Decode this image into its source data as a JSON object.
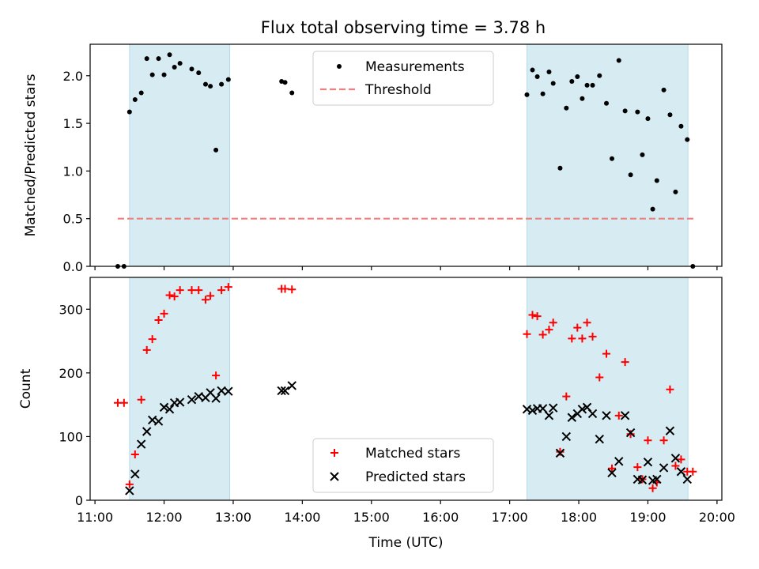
{
  "title": "Flux total observing time = 3.78 h",
  "colors": {
    "shade": "#add8e6",
    "measure": "#000000",
    "threshold": "#f08080",
    "matched": "#ff0000",
    "predicted": "#000000"
  },
  "chart_data": [
    {
      "type": "scatter",
      "name": "ratio",
      "title": "Flux total observing time = 3.78 h",
      "xlabel": "",
      "ylabel": "Matched/Predicted stars",
      "xlim": [
        10.93,
        20.07
      ],
      "ylim": [
        0.0,
        2.33
      ],
      "yticks": [
        0.0,
        0.5,
        1.0,
        1.5,
        2.0
      ],
      "ytick_labels": [
        "0.0",
        "0.5",
        "1.0",
        "1.5",
        "2.0"
      ],
      "threshold": {
        "name": "Threshold",
        "value": 0.5,
        "x": [
          11.33,
          19.67
        ]
      },
      "shaded_intervals": [
        [
          11.5,
          12.95
        ],
        [
          17.25,
          19.58
        ]
      ],
      "legend": {
        "position": "top-center",
        "entries": [
          "Measurements",
          "Threshold"
        ]
      },
      "series": [
        {
          "name": "Measurements",
          "marker": "point",
          "x": [
            11.33,
            11.42,
            11.5,
            11.58,
            11.67,
            11.75,
            11.83,
            11.92,
            12.0,
            12.08,
            12.15,
            12.23,
            12.4,
            12.5,
            12.6,
            12.67,
            12.75,
            12.83,
            12.93,
            13.7,
            13.75,
            13.85,
            17.25,
            17.33,
            17.4,
            17.48,
            17.57,
            17.63,
            17.73,
            17.82,
            17.9,
            17.98,
            18.05,
            18.12,
            18.2,
            18.3,
            18.4,
            18.48,
            18.58,
            18.67,
            18.75,
            18.85,
            18.92,
            19.0,
            19.07,
            19.13,
            19.23,
            19.32,
            19.4,
            19.48,
            19.57,
            19.65
          ],
          "y": [
            0.0,
            0.0,
            1.62,
            1.75,
            1.82,
            2.18,
            2.01,
            2.18,
            2.01,
            2.22,
            2.09,
            2.13,
            2.07,
            2.03,
            1.91,
            1.89,
            1.22,
            1.91,
            1.96,
            1.94,
            1.93,
            1.82,
            1.8,
            2.06,
            1.99,
            1.81,
            2.04,
            1.92,
            1.03,
            1.66,
            1.94,
            1.99,
            1.76,
            1.9,
            1.9,
            2.0,
            1.71,
            1.13,
            2.16,
            1.63,
            0.96,
            1.62,
            1.17,
            1.55,
            0.6,
            0.9,
            1.85,
            1.59,
            0.78,
            1.47,
            1.33,
            0.0
          ]
        }
      ]
    },
    {
      "type": "scatter",
      "name": "counts",
      "title": "",
      "xlabel": "Time (UTC)",
      "ylabel": "Count",
      "xlim": [
        10.93,
        20.07
      ],
      "ylim": [
        0,
        350
      ],
      "yticks": [
        0,
        100,
        200,
        300
      ],
      "ytick_labels": [
        "0",
        "100",
        "200",
        "300"
      ],
      "xticks": [
        11,
        12,
        13,
        14,
        15,
        16,
        17,
        18,
        19,
        20
      ],
      "xtick_labels": [
        "11:00",
        "12:00",
        "13:00",
        "14:00",
        "15:00",
        "16:00",
        "17:00",
        "18:00",
        "19:00",
        "20:00"
      ],
      "shaded_intervals": [
        [
          11.5,
          12.95
        ],
        [
          17.25,
          19.58
        ]
      ],
      "legend": {
        "position": "bottom-center",
        "entries": [
          "Matched stars",
          "Predicted stars"
        ]
      },
      "series": [
        {
          "name": "Matched stars",
          "marker": "plus",
          "x": [
            11.33,
            11.42,
            11.5,
            11.58,
            11.67,
            11.75,
            11.83,
            11.92,
            12.0,
            12.08,
            12.15,
            12.23,
            12.4,
            12.5,
            12.6,
            12.67,
            12.75,
            12.83,
            12.93,
            13.7,
            13.75,
            13.85,
            17.25,
            17.33,
            17.4,
            17.48,
            17.57,
            17.63,
            17.73,
            17.82,
            17.9,
            17.98,
            18.05,
            18.12,
            18.2,
            18.3,
            18.4,
            18.48,
            18.58,
            18.67,
            18.75,
            18.85,
            18.92,
            19.0,
            19.07,
            19.13,
            19.23,
            19.32,
            19.4,
            19.48,
            19.57,
            19.65
          ],
          "y": [
            153,
            153,
            25,
            72,
            158,
            236,
            253,
            283,
            293,
            322,
            320,
            330,
            330,
            330,
            315,
            321,
            196,
            330,
            335,
            332,
            332,
            331,
            261,
            291,
            289,
            260,
            268,
            279,
            76,
            163,
            254,
            271,
            254,
            279,
            257,
            193,
            230,
            50,
            133,
            217,
            104,
            52,
            33,
            94,
            19,
            28,
            94,
            174,
            54,
            64,
            45,
            45
          ]
        },
        {
          "name": "Predicted stars",
          "marker": "x",
          "x": [
            11.5,
            11.58,
            11.67,
            11.75,
            11.83,
            11.92,
            12.0,
            12.08,
            12.15,
            12.23,
            12.4,
            12.5,
            12.6,
            12.67,
            12.75,
            12.83,
            12.93,
            13.7,
            13.75,
            13.85,
            17.25,
            17.33,
            17.4,
            17.48,
            17.57,
            17.63,
            17.73,
            17.82,
            17.9,
            17.98,
            18.05,
            18.12,
            18.2,
            18.3,
            18.4,
            18.48,
            18.58,
            18.67,
            18.75,
            18.85,
            18.92,
            19.0,
            19.07,
            19.13,
            19.23,
            19.32,
            19.4,
            19.48,
            19.57
          ],
          "y": [
            15,
            41,
            88,
            108,
            126,
            124,
            146,
            143,
            153,
            154,
            158,
            163,
            161,
            169,
            160,
            172,
            171,
            172,
            172,
            180,
            143,
            141,
            144,
            144,
            133,
            145,
            74,
            100,
            130,
            136,
            143,
            146,
            136,
            96,
            133,
            43,
            61,
            133,
            106,
            33,
            32,
            60,
            31,
            33,
            51,
            109,
            66,
            45,
            33
          ]
        }
      ]
    }
  ]
}
